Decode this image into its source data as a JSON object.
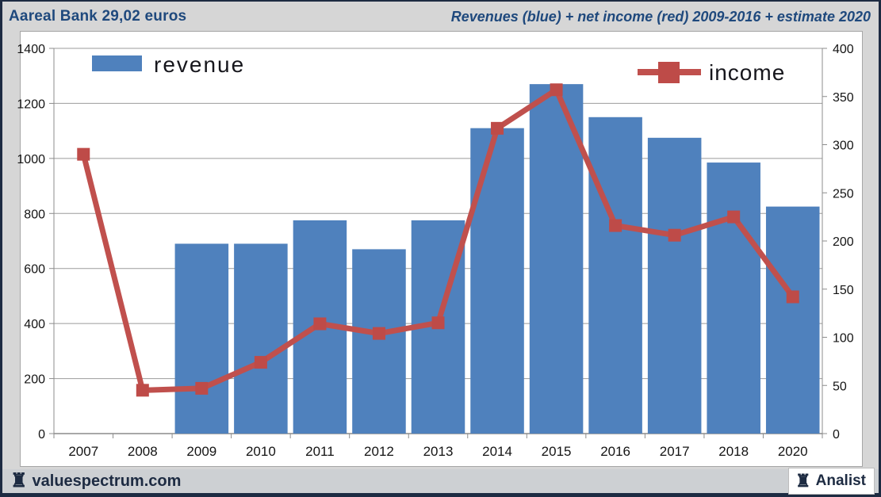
{
  "header": {
    "title": "Aareal Bank 29,02 euros",
    "subtitle": "Revenues (blue) + net income (red) 2009-2016 + estimate 2020"
  },
  "legend": {
    "revenue_label": "revenue",
    "income_label": "income"
  },
  "footer": {
    "brand": "valuespectrum.com",
    "badge": "Analist",
    "rook_icon": "♜"
  },
  "colors": {
    "bar_blue": "#4f81bd",
    "line_red": "#c0504d",
    "marker_red": "#be4b48",
    "grid_gray": "#9b9b9b",
    "axis_gray": "#8c8c8c",
    "text_black": "#141414",
    "navy": "#1f497d"
  },
  "chart_data": {
    "type": "bar",
    "title": "Revenues (blue) + net income (red) 2009-2016 + estimate 2020",
    "xlabel": "",
    "ylabel_left": "",
    "ylabel_right": "",
    "grid": true,
    "legend_position": "top-inside",
    "categories": [
      "2007",
      "2008",
      "2009",
      "2010",
      "2011",
      "2012",
      "2013",
      "2014",
      "2015",
      "2016",
      "2017",
      "2018",
      "2020"
    ],
    "series": [
      {
        "name": "revenue",
        "type": "bar",
        "axis": "left",
        "values": [
          null,
          null,
          690,
          690,
          775,
          670,
          775,
          1110,
          1270,
          1150,
          1075,
          985,
          825
        ]
      },
      {
        "name": "income",
        "type": "line",
        "axis": "right",
        "values": [
          290,
          45,
          47,
          74,
          114,
          104,
          115,
          317,
          357,
          216,
          206,
          225,
          142
        ]
      }
    ],
    "left_axis": {
      "min": 0,
      "max": 1400,
      "step": 200,
      "ticks": [
        "0",
        "200",
        "400",
        "600",
        "800",
        "1000",
        "1200",
        "1400"
      ]
    },
    "right_axis": {
      "min": 0,
      "max": 400,
      "step": 50,
      "ticks": [
        "0",
        "50",
        "100",
        "150",
        "200",
        "250",
        "300",
        "350",
        "400"
      ]
    }
  }
}
